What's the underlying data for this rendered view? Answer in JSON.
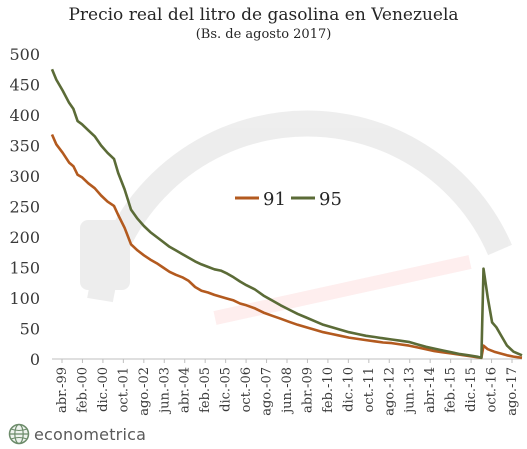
{
  "chart_data": {
    "type": "line",
    "title": "Precio real del litro de gasolina en Venezuela",
    "subtitle": "(Bs. de agosto 2017)",
    "xlabel": "",
    "ylabel": "",
    "ylim": [
      0,
      500
    ],
    "yticks": [
      "0",
      "50",
      "100",
      "150",
      "200",
      "250",
      "300",
      "350",
      "400",
      "450",
      "500"
    ],
    "x_tick_labels": [
      "abr.-99",
      "feb.-00",
      "dic.-00",
      "oct.-01",
      "ago.-02",
      "jun.-03",
      "abr.-04",
      "feb.-05",
      "dic.-05",
      "oct.-06",
      "ago.-07",
      "jun.-08",
      "abr.-09",
      "feb.-10",
      "dic.-10",
      "oct.-11",
      "ago.-12",
      "jun.-13",
      "abr.-14",
      "feb.-15",
      "dic.-15",
      "oct.-16",
      "ago.-17"
    ],
    "grid": false,
    "legend": "center",
    "series": [
      {
        "name": "91",
        "color": "#b35a1f",
        "points": [
          [
            "1999-04",
            368
          ],
          [
            "1999-06",
            352
          ],
          [
            "1999-09",
            338
          ],
          [
            "1999-12",
            322
          ],
          [
            "2000-02",
            316
          ],
          [
            "2000-04",
            302
          ],
          [
            "2000-06",
            298
          ],
          [
            "2000-09",
            288
          ],
          [
            "2000-12",
            280
          ],
          [
            "2001-03",
            268
          ],
          [
            "2001-06",
            258
          ],
          [
            "2001-09",
            251
          ],
          [
            "2001-11",
            236
          ],
          [
            "2002-02",
            215
          ],
          [
            "2002-05",
            188
          ],
          [
            "2002-08",
            178
          ],
          [
            "2002-11",
            170
          ],
          [
            "2003-02",
            163
          ],
          [
            "2003-05",
            157
          ],
          [
            "2003-08",
            150
          ],
          [
            "2003-11",
            143
          ],
          [
            "2004-02",
            138
          ],
          [
            "2004-05",
            134
          ],
          [
            "2004-08",
            128
          ],
          [
            "2004-11",
            118
          ],
          [
            "2005-02",
            112
          ],
          [
            "2005-05",
            109
          ],
          [
            "2005-08",
            105
          ],
          [
            "2005-11",
            102
          ],
          [
            "2006-02",
            99
          ],
          [
            "2006-05",
            96
          ],
          [
            "2006-08",
            91
          ],
          [
            "2006-11",
            88
          ],
          [
            "2007-03",
            83
          ],
          [
            "2007-07",
            76
          ],
          [
            "2007-11",
            71
          ],
          [
            "2008-03",
            66
          ],
          [
            "2008-07",
            61
          ],
          [
            "2008-11",
            56
          ],
          [
            "2009-03",
            52
          ],
          [
            "2009-07",
            48
          ],
          [
            "2009-11",
            44
          ],
          [
            "2010-03",
            41
          ],
          [
            "2010-07",
            38
          ],
          [
            "2010-11",
            35
          ],
          [
            "2011-03",
            33
          ],
          [
            "2011-07",
            31
          ],
          [
            "2011-11",
            29
          ],
          [
            "2012-03",
            27
          ],
          [
            "2012-07",
            26
          ],
          [
            "2012-11",
            24
          ],
          [
            "2013-03",
            22
          ],
          [
            "2013-07",
            19
          ],
          [
            "2013-11",
            16
          ],
          [
            "2014-03",
            13
          ],
          [
            "2014-07",
            11
          ],
          [
            "2014-11",
            9
          ],
          [
            "2015-03",
            7
          ],
          [
            "2015-07",
            5
          ],
          [
            "2015-11",
            3
          ],
          [
            "2016-01",
            2
          ],
          [
            "2016-02",
            22
          ],
          [
            "2016-04",
            16
          ],
          [
            "2016-07",
            12
          ],
          [
            "2016-10",
            9
          ],
          [
            "2017-01",
            6
          ],
          [
            "2017-04",
            4
          ],
          [
            "2017-08",
            2
          ]
        ]
      },
      {
        "name": "95",
        "color": "#5b6b37",
        "points": [
          [
            "1999-04",
            475
          ],
          [
            "1999-06",
            458
          ],
          [
            "1999-09",
            440
          ],
          [
            "1999-12",
            420
          ],
          [
            "2000-02",
            410
          ],
          [
            "2000-04",
            390
          ],
          [
            "2000-06",
            385
          ],
          [
            "2000-09",
            375
          ],
          [
            "2000-12",
            365
          ],
          [
            "2001-03",
            350
          ],
          [
            "2001-06",
            338
          ],
          [
            "2001-09",
            328
          ],
          [
            "2001-11",
            305
          ],
          [
            "2002-02",
            278
          ],
          [
            "2002-05",
            245
          ],
          [
            "2002-08",
            230
          ],
          [
            "2002-11",
            218
          ],
          [
            "2003-02",
            208
          ],
          [
            "2003-05",
            200
          ],
          [
            "2003-08",
            192
          ],
          [
            "2003-11",
            184
          ],
          [
            "2004-02",
            178
          ],
          [
            "2004-05",
            172
          ],
          [
            "2004-08",
            166
          ],
          [
            "2004-11",
            160
          ],
          [
            "2005-02",
            155
          ],
          [
            "2005-05",
            151
          ],
          [
            "2005-08",
            147
          ],
          [
            "2005-11",
            145
          ],
          [
            "2006-02",
            140
          ],
          [
            "2006-05",
            134
          ],
          [
            "2006-08",
            127
          ],
          [
            "2006-11",
            121
          ],
          [
            "2007-03",
            114
          ],
          [
            "2007-07",
            104
          ],
          [
            "2007-11",
            96
          ],
          [
            "2008-03",
            88
          ],
          [
            "2008-07",
            81
          ],
          [
            "2008-11",
            74
          ],
          [
            "2009-03",
            68
          ],
          [
            "2009-07",
            62
          ],
          [
            "2009-11",
            56
          ],
          [
            "2010-03",
            52
          ],
          [
            "2010-07",
            48
          ],
          [
            "2010-11",
            44
          ],
          [
            "2011-03",
            41
          ],
          [
            "2011-07",
            38
          ],
          [
            "2011-11",
            36
          ],
          [
            "2012-03",
            34
          ],
          [
            "2012-07",
            32
          ],
          [
            "2012-11",
            30
          ],
          [
            "2013-03",
            28
          ],
          [
            "2013-07",
            24
          ],
          [
            "2013-11",
            20
          ],
          [
            "2014-03",
            17
          ],
          [
            "2014-07",
            14
          ],
          [
            "2014-11",
            11
          ],
          [
            "2015-03",
            8
          ],
          [
            "2015-07",
            6
          ],
          [
            "2015-11",
            4
          ],
          [
            "2016-01",
            2
          ],
          [
            "2016-02",
            148
          ],
          [
            "2016-04",
            100
          ],
          [
            "2016-06",
            60
          ],
          [
            "2016-08",
            52
          ],
          [
            "2016-10",
            40
          ],
          [
            "2017-01",
            22
          ],
          [
            "2017-04",
            12
          ],
          [
            "2017-08",
            6
          ]
        ]
      }
    ]
  },
  "brand": {
    "name": "econometrica",
    "logo_icon": "globe-icon"
  }
}
